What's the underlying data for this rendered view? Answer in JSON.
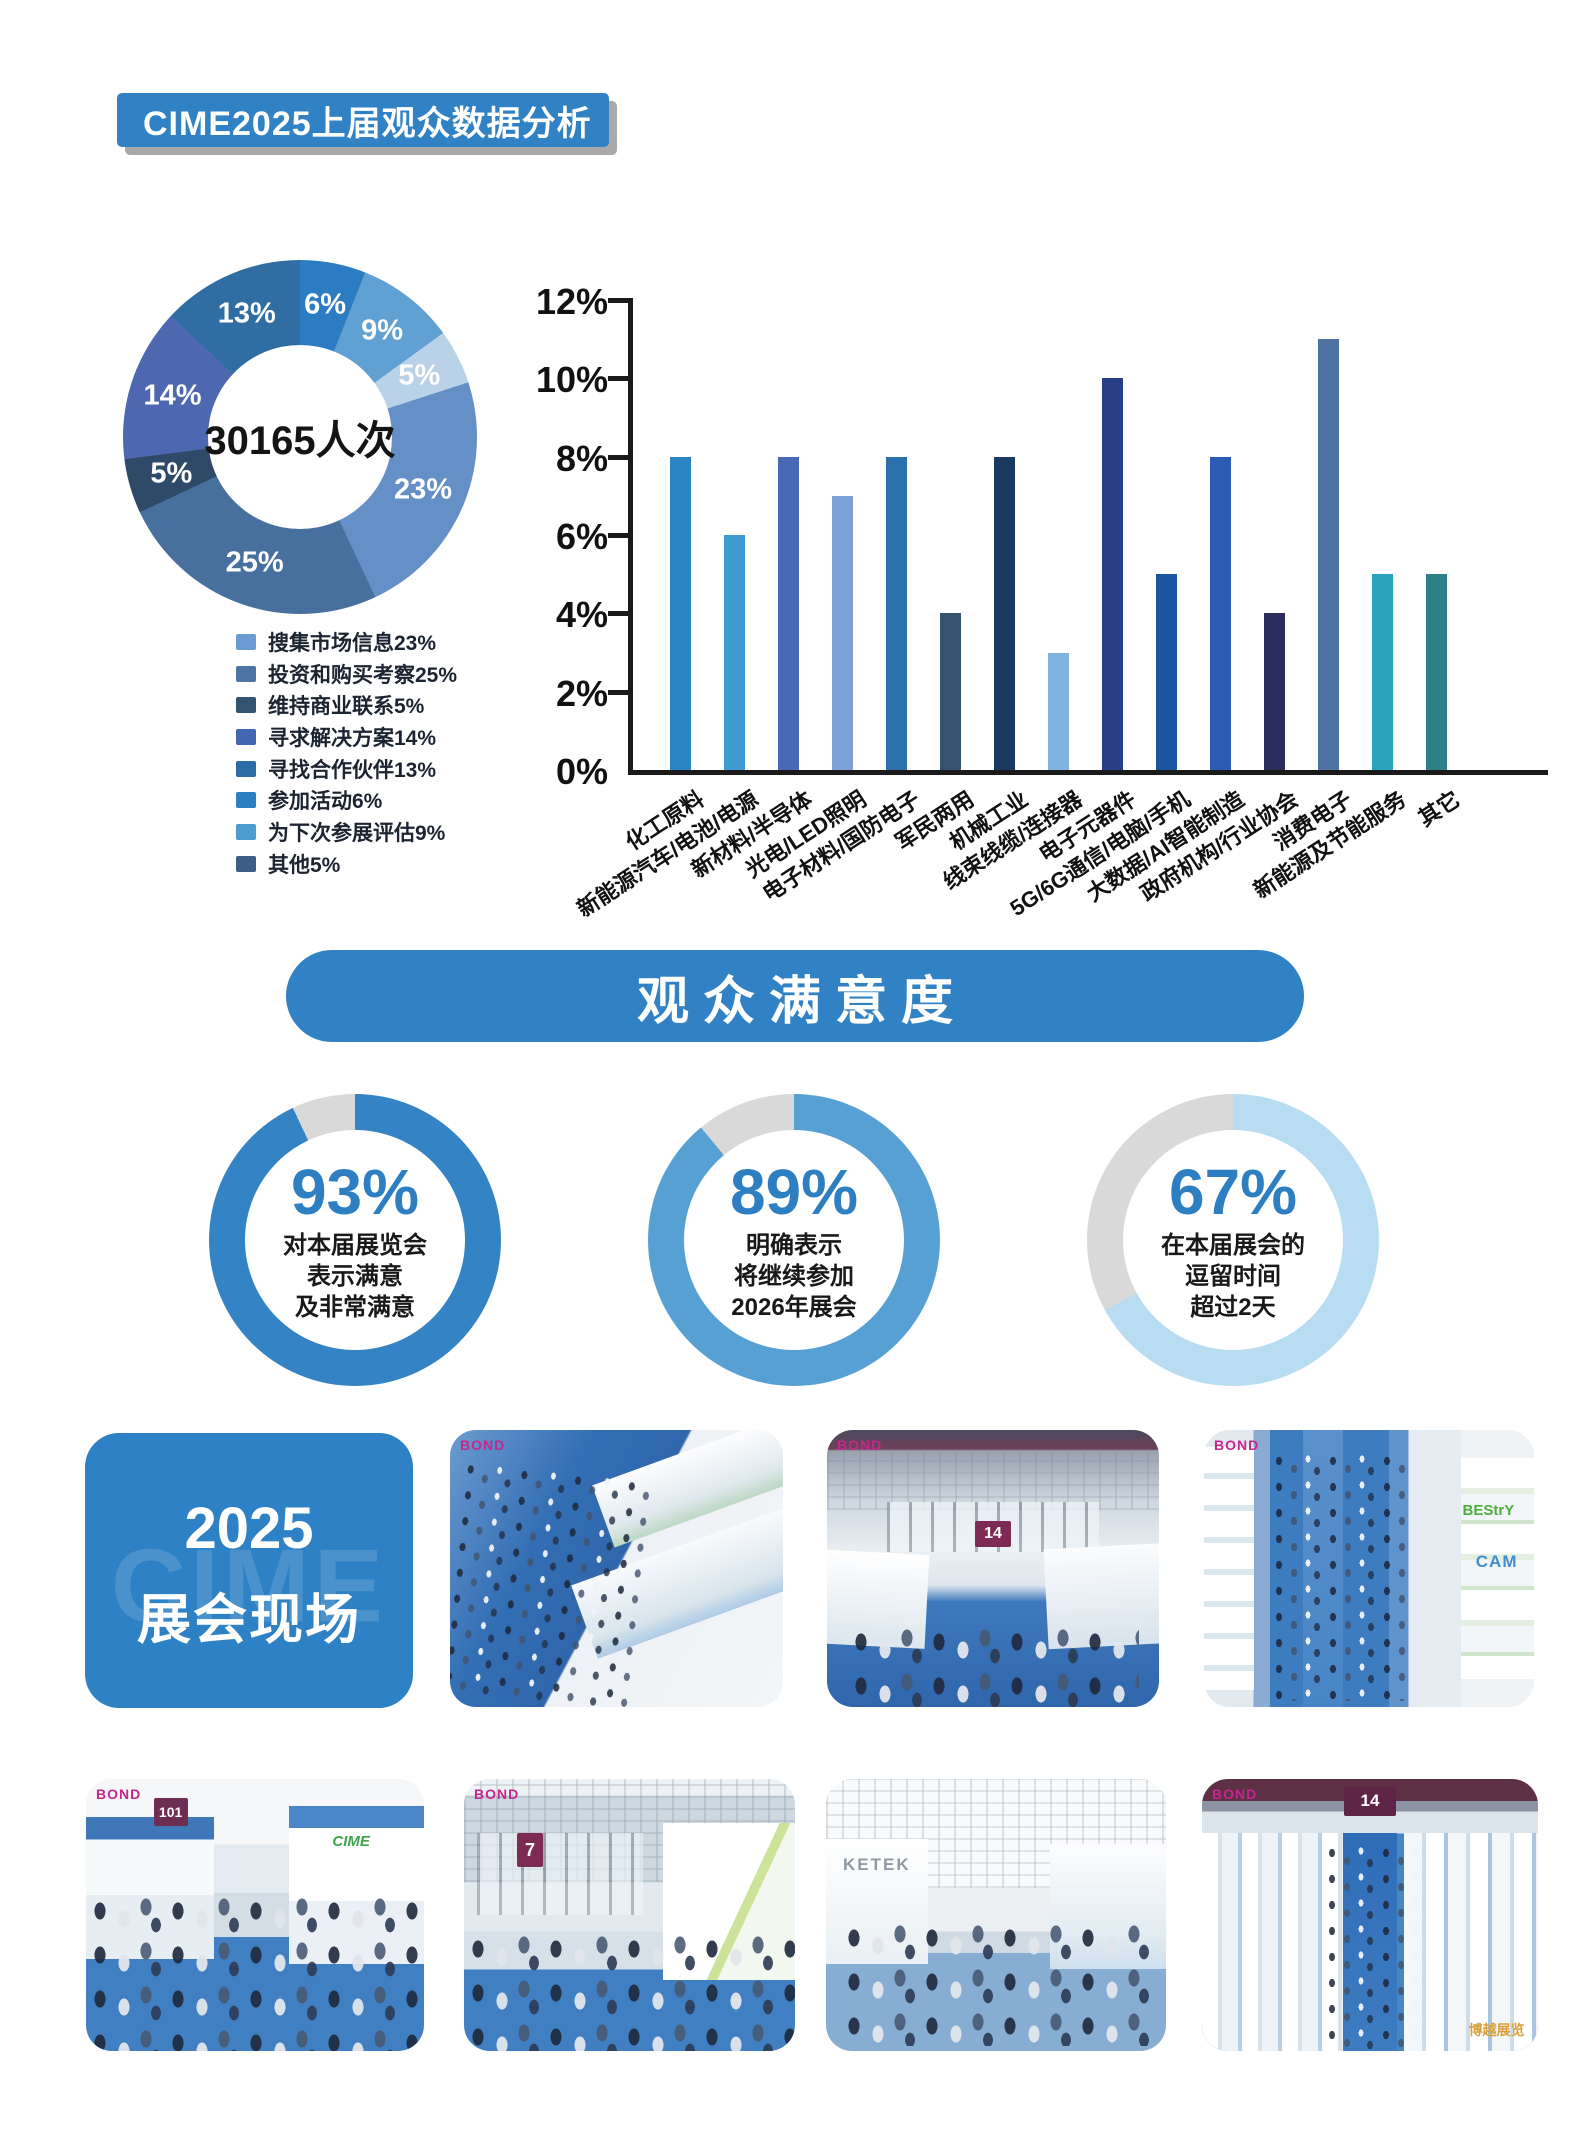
{
  "header": {
    "title": "CIME2025上届观众数据分析"
  },
  "satisfaction": {
    "banner": "观众满意度"
  },
  "chart_data": [
    {
      "type": "pie",
      "subtype": "donut",
      "center_label": "30165人次",
      "slices_clockwise_from_top": [
        {
          "label": "参加活动",
          "value": 6,
          "color": "#2C7CC4"
        },
        {
          "label": "为下次参展评估",
          "value": 9,
          "color": "#61A0D2"
        },
        {
          "label": "其他",
          "value": 5,
          "color": "#B9D2E8"
        },
        {
          "label": "搜集市场信息",
          "value": 23,
          "color": "#6590C7"
        },
        {
          "label": "投资和购买考察",
          "value": 25,
          "color": "#48709E"
        },
        {
          "label": "维持商业联系",
          "value": 5,
          "color": "#2F4A69"
        },
        {
          "label": "寻求解决方案",
          "value": 14,
          "color": "#4D68B0"
        },
        {
          "label": "寻找合作伙伴",
          "value": 13,
          "color": "#2F6DA3"
        }
      ],
      "legend": [
        {
          "text": "搜集市场信息23%",
          "color": "#6B9BD2"
        },
        {
          "text": "投资和购买考察25%",
          "color": "#4D74A3"
        },
        {
          "text": "维持商业联系5%",
          "color": "#34536F"
        },
        {
          "text": "寻求解决方案14%",
          "color": "#4467B2"
        },
        {
          "text": "寻找合作伙伴13%",
          "color": "#2C6CA4"
        },
        {
          "text": "参加活动6%",
          "color": "#2B80C4"
        },
        {
          "text": "为下次参展评估9%",
          "color": "#4E9BD0"
        },
        {
          "text": "其他5%",
          "color": "#3C5E86"
        }
      ]
    },
    {
      "type": "bar",
      "categories": [
        "化工原料",
        "新能源汽车/电池/电源",
        "新材料/半导体",
        "光电/LED照明",
        "电子材料/国防电子",
        "军民两用",
        "机械工业",
        "线束线缆/连接器",
        "电子元器件",
        "5G/6G通信/电脑/手机",
        "大数据/AI智能制造",
        "政府机构/行业协会",
        "消费电子",
        "新能源及节能服务",
        "其它"
      ],
      "values": [
        8,
        6,
        8,
        7,
        8,
        4,
        8,
        3,
        10,
        5,
        8,
        4,
        11,
        5,
        5
      ],
      "colors": [
        "#2B84C6",
        "#3E9BD1",
        "#4A69B4",
        "#7CA2D8",
        "#2C6FAD",
        "#35536F",
        "#1A3A60",
        "#7EB3DF",
        "#253E85",
        "#1A55A0",
        "#2A5CB4",
        "#2B2E5C",
        "#4C73A3",
        "#2BA3BC",
        "#2E7F87"
      ],
      "yticks": [
        "0%",
        "2%",
        "4%",
        "6%",
        "8%",
        "10%",
        "12%"
      ],
      "ylim": [
        0,
        12
      ],
      "grid": false
    },
    {
      "type": "donut-gauge",
      "track_color": "#D9D9D9",
      "number_color": "#2E7FC2",
      "gauges": [
        {
          "percent": "93%",
          "value": 93,
          "ring_color": "#3383C5",
          "lines": [
            "对本届展览会",
            "表示满意",
            "及非常满意"
          ]
        },
        {
          "percent": "89%",
          "value": 89,
          "ring_color": "#57A0D3",
          "lines": [
            "明确表示",
            "将继续参加",
            "2026年展会"
          ]
        },
        {
          "percent": "67%",
          "value": 67,
          "ring_color": "#B8DCF2",
          "lines": [
            "在本届展会的",
            "逗留时间",
            "超过2天"
          ]
        }
      ]
    }
  ],
  "gallery": {
    "watermark": "CIME",
    "title_line1": "2025",
    "title_line2": "展会现场",
    "photos": [
      {
        "style": "aerial",
        "brand": "BOND"
      },
      {
        "style": "hall",
        "brand": "BOND",
        "badge": "14"
      },
      {
        "style": "aerial2",
        "brand": "BOND",
        "sign_a": "BEStrY",
        "sign_b": "CAM"
      },
      {
        "style": "aisle",
        "brand": "BOND",
        "badge": "101",
        "sign_a": "CIME"
      },
      {
        "style": "hall2",
        "brand": "BOND",
        "badge": "7"
      },
      {
        "style": "aisle2",
        "sign_a": "KETEK"
      },
      {
        "style": "aerial3",
        "brand": "BOND",
        "badge": "14",
        "sign_a": "博越展览"
      }
    ]
  }
}
